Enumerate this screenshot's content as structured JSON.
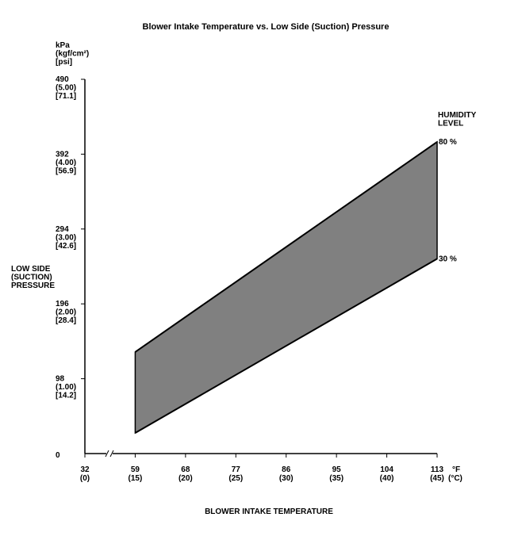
{
  "chart_data": {
    "type": "area",
    "title": "Blower Intake Temperature vs. Low Side (Suction) Pressure",
    "xlabel": "BLOWER INTAKE TEMPERATURE",
    "ylabel": [
      "LOW SIDE",
      "(SUCTION)",
      "PRESSURE"
    ],
    "y_units": [
      "kPa",
      "(kgf/cm²)",
      "[psi]"
    ],
    "x_units": {
      "f": "°F",
      "c": "(°C)"
    },
    "xlim": [
      32,
      113
    ],
    "ylim": [
      0,
      490
    ],
    "x_axis_break": true,
    "x_ticks": [
      {
        "f": "32",
        "c": "(0)",
        "value": 32
      },
      {
        "f": "59",
        "c": "(15)",
        "value": 59
      },
      {
        "f": "68",
        "c": "(20)",
        "value": 68
      },
      {
        "f": "77",
        "c": "(25)",
        "value": 77
      },
      {
        "f": "86",
        "c": "(30)",
        "value": 86
      },
      {
        "f": "95",
        "c": "(35)",
        "value": 95
      },
      {
        "f": "104",
        "c": "(40)",
        "value": 104
      },
      {
        "f": "113",
        "c": "(45)",
        "value": 113
      }
    ],
    "y_ticks": [
      {
        "kpa": "0",
        "kgf": "",
        "psi": "",
        "value": 0
      },
      {
        "kpa": "98",
        "kgf": "(1.00)",
        "psi": "[14.2]",
        "value": 98
      },
      {
        "kpa": "196",
        "kgf": "(2.00)",
        "psi": "[28.4]",
        "value": 196
      },
      {
        "kpa": "294",
        "kgf": "(3.00)",
        "psi": "[42.6]",
        "value": 294
      },
      {
        "kpa": "392",
        "kgf": "(4.00)",
        "psi": "[56.9]",
        "value": 392
      },
      {
        "kpa": "490",
        "kgf": "(5.00)",
        "psi": "[71.1]",
        "value": 490
      }
    ],
    "legend_title": [
      "HUMIDITY",
      "LEVEL"
    ],
    "series": [
      {
        "name": "80 %",
        "x": [
          59,
          113
        ],
        "y": [
          133,
          408
        ]
      },
      {
        "name": "30 %",
        "x": [
          59,
          113
        ],
        "y": [
          27,
          255
        ]
      }
    ],
    "band_color": "#808080",
    "line_color": "#000000"
  }
}
